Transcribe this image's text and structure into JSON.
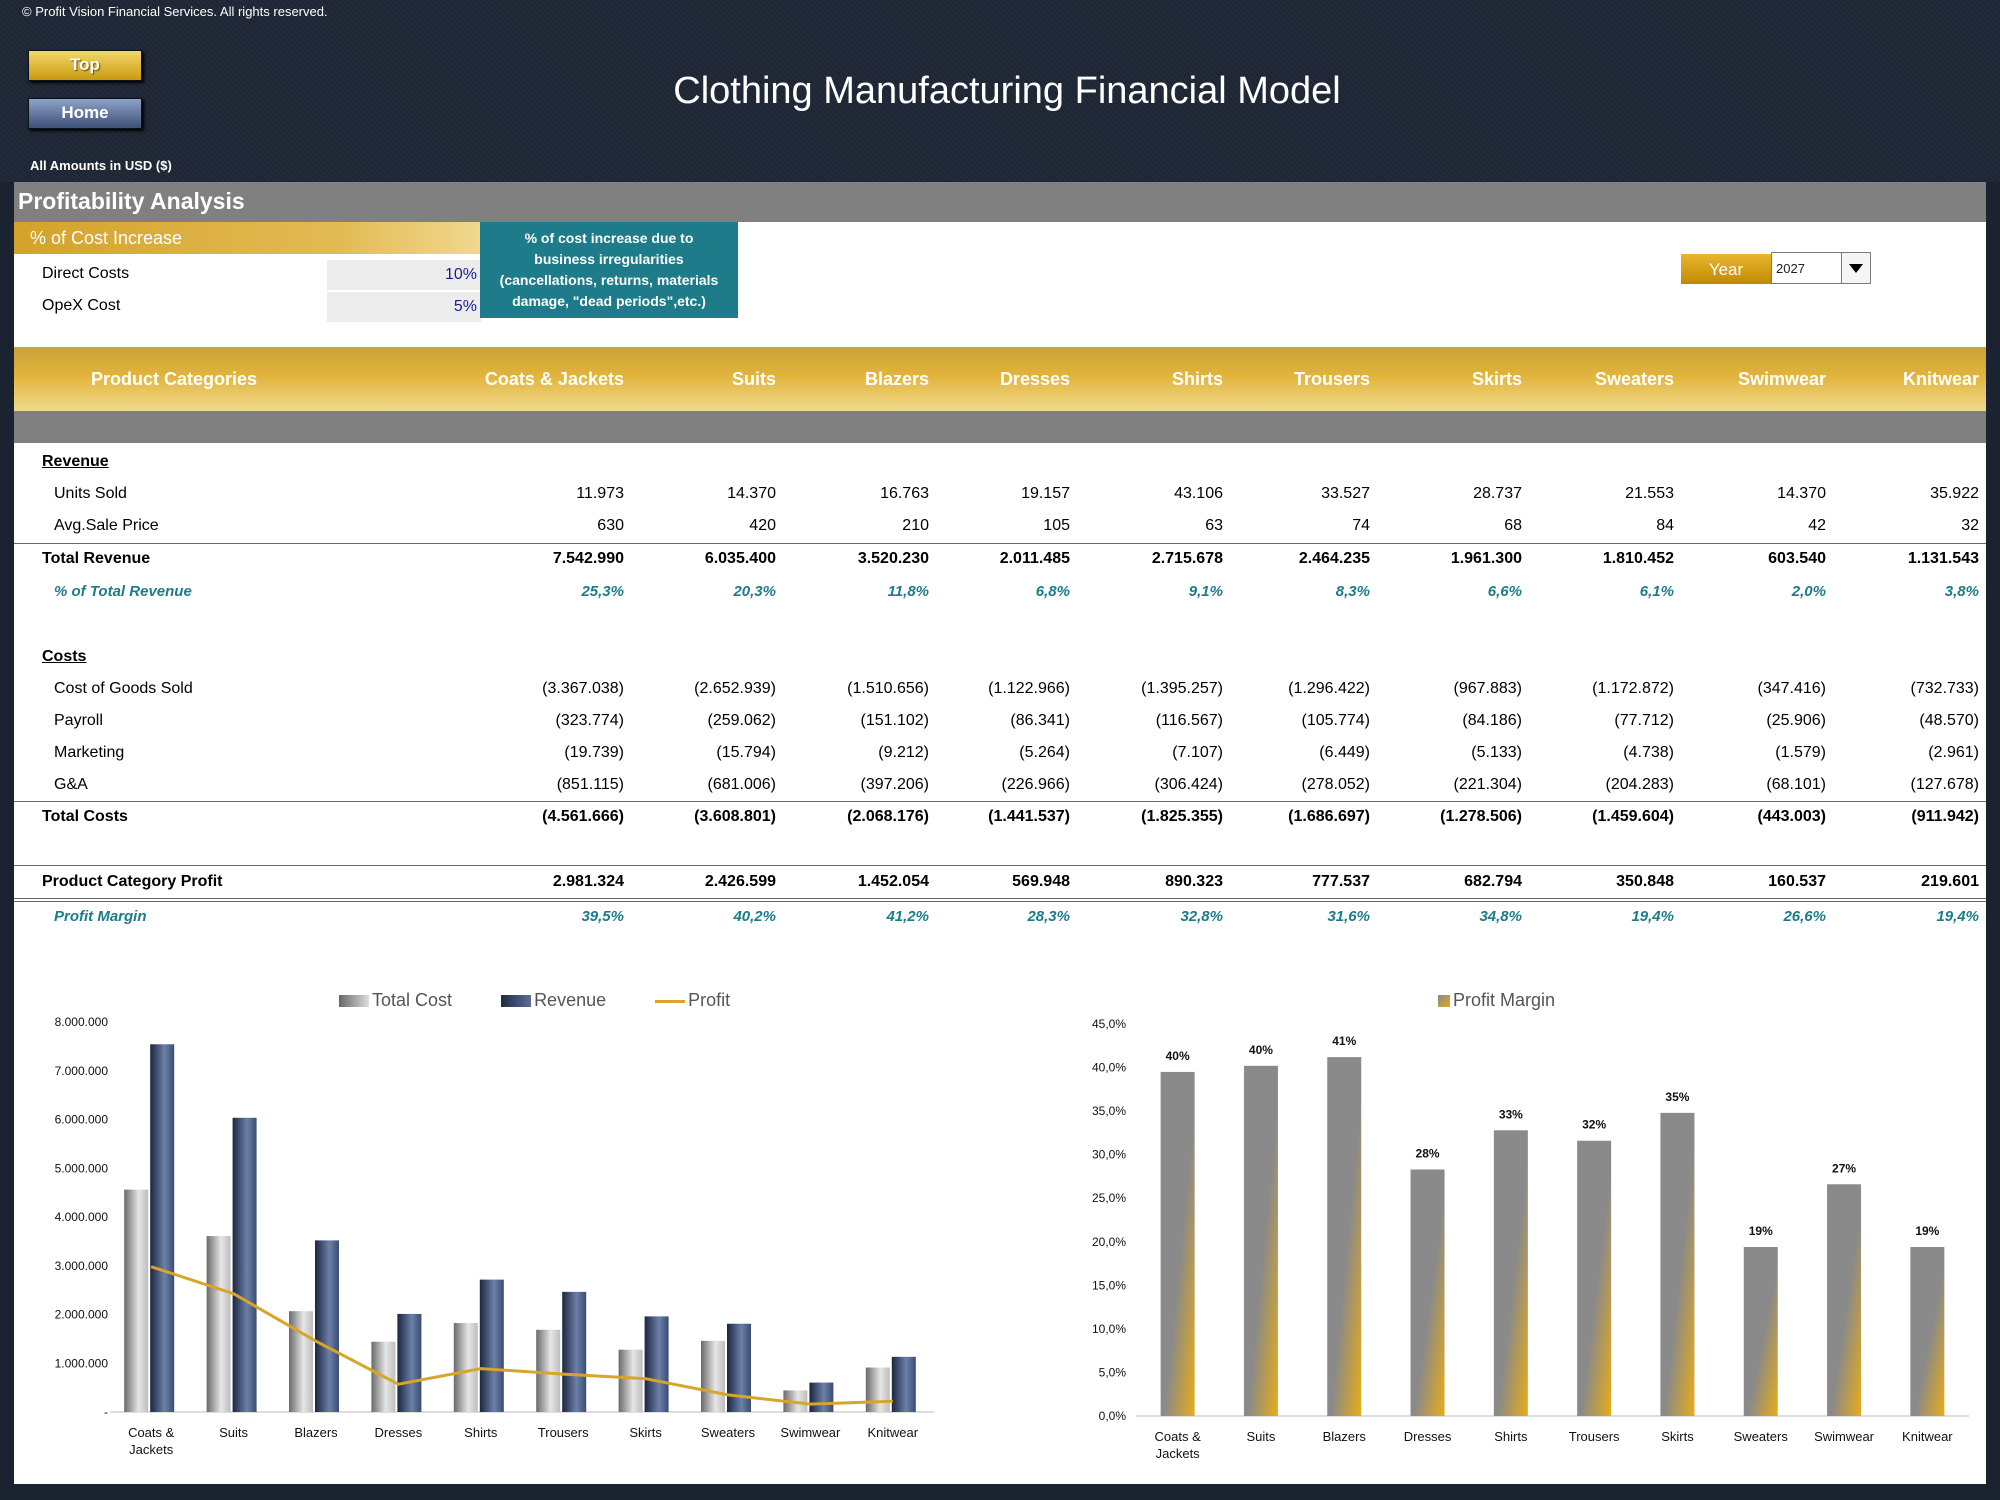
{
  "header": {
    "copyright": "© Profit Vision Financial Services. All rights reserved.",
    "top_button": "Top",
    "home_button": "Home",
    "title": "Clothing Manufacturing Financial Model",
    "amounts_note": "All Amounts in  USD ($)"
  },
  "section": {
    "title": "Profitability Analysis"
  },
  "cost_increase": {
    "header": "% of Cost Increase",
    "rows": [
      {
        "label": "Direct Costs",
        "value": "10%"
      },
      {
        "label": "OpeX Cost",
        "value": "5%"
      }
    ],
    "note_lines": [
      "% of cost increase due to",
      "business irregularities",
      "(cancellations, returns, materials",
      "damage, \"dead periods\",etc.)"
    ]
  },
  "year": {
    "label": "Year",
    "value": "2027"
  },
  "table": {
    "header_label": "Product Categories",
    "categories": [
      "Coats & Jackets",
      "Suits",
      "Blazers",
      "Dresses",
      "Shirts",
      "Trousers",
      "Skirts",
      "Sweaters",
      "Swimwear",
      "Knitwear"
    ],
    "revenue_title": "Revenue",
    "units_sold": {
      "label": "Units Sold",
      "values": [
        "11.973",
        "14.370",
        "16.763",
        "19.157",
        "43.106",
        "33.527",
        "28.737",
        "21.553",
        "14.370",
        "35.922"
      ]
    },
    "avg_price": {
      "label": "Avg.Sale Price",
      "values": [
        "630",
        "420",
        "210",
        "105",
        "63",
        "74",
        "68",
        "84",
        "42",
        "32"
      ]
    },
    "total_revenue": {
      "label": "Total Revenue",
      "values": [
        "7.542.990",
        "6.035.400",
        "3.520.230",
        "2.011.485",
        "2.715.678",
        "2.464.235",
        "1.961.300",
        "1.810.452",
        "603.540",
        "1.131.543"
      ]
    },
    "pct_revenue": {
      "label": "% of Total Revenue",
      "values": [
        "25,3%",
        "20,3%",
        "11,8%",
        "6,8%",
        "9,1%",
        "8,3%",
        "6,6%",
        "6,1%",
        "2,0%",
        "3,8%"
      ]
    },
    "costs_title": "Costs",
    "cogs": {
      "label": "Cost of Goods Sold",
      "values": [
        "(3.367.038)",
        "(2.652.939)",
        "(1.510.656)",
        "(1.122.966)",
        "(1.395.257)",
        "(1.296.422)",
        "(967.883)",
        "(1.172.872)",
        "(347.416)",
        "(732.733)"
      ]
    },
    "payroll": {
      "label": "Payroll",
      "values": [
        "(323.774)",
        "(259.062)",
        "(151.102)",
        "(86.341)",
        "(116.567)",
        "(105.774)",
        "(84.186)",
        "(77.712)",
        "(25.906)",
        "(48.570)"
      ]
    },
    "marketing": {
      "label": "Marketing",
      "values": [
        "(19.739)",
        "(15.794)",
        "(9.212)",
        "(5.264)",
        "(7.107)",
        "(6.449)",
        "(5.133)",
        "(4.738)",
        "(1.579)",
        "(2.961)"
      ]
    },
    "ga": {
      "label": "G&A",
      "values": [
        "(851.115)",
        "(681.006)",
        "(397.206)",
        "(226.966)",
        "(306.424)",
        "(278.052)",
        "(221.304)",
        "(204.283)",
        "(68.101)",
        "(127.678)"
      ]
    },
    "total_costs": {
      "label": "Total Costs",
      "values": [
        "(4.561.666)",
        "(3.608.801)",
        "(2.068.176)",
        "(1.441.537)",
        "(1.825.355)",
        "(1.686.697)",
        "(1.278.506)",
        "(1.459.604)",
        "(443.003)",
        "(911.942)"
      ]
    },
    "profit": {
      "label": "Product Category Profit",
      "values": [
        "2.981.324",
        "2.426.599",
        "1.452.054",
        "569.948",
        "890.323",
        "777.537",
        "682.794",
        "350.848",
        "160.537",
        "219.601"
      ]
    },
    "margin": {
      "label": "Profit Margin",
      "values": [
        "39,5%",
        "40,2%",
        "41,2%",
        "28,3%",
        "32,8%",
        "31,6%",
        "34,8%",
        "19,4%",
        "26,6%",
        "19,4%"
      ]
    }
  },
  "chart_data": [
    {
      "type": "bar",
      "categories": [
        "Coats & Jackets",
        "Suits",
        "Blazers",
        "Dresses",
        "Shirts",
        "Trousers",
        "Skirts",
        "Sweaters",
        "Swimwear",
        "Knitwear"
      ],
      "series": [
        {
          "name": "Total Cost",
          "type": "bar",
          "values": [
            4561666,
            3608801,
            2068176,
            1441537,
            1825355,
            1686697,
            1278506,
            1459604,
            443003,
            911942
          ]
        },
        {
          "name": "Revenue",
          "type": "bar",
          "values": [
            7542990,
            6035400,
            3520230,
            2011485,
            2715678,
            2464235,
            1961300,
            1810452,
            603540,
            1131543
          ]
        },
        {
          "name": "Profit",
          "type": "line",
          "values": [
            2981324,
            2426599,
            1452054,
            569948,
            890323,
            777537,
            682794,
            350848,
            160537,
            219601
          ]
        }
      ],
      "yticks": [
        "-",
        "1.000.000",
        "2.000.000",
        "3.000.000",
        "4.000.000",
        "5.000.000",
        "6.000.000",
        "7.000.000",
        "8.000.000"
      ],
      "ylim": [
        0,
        8000000
      ],
      "legend": "top",
      "colors": {
        "Total Cost": "#9e9e9e",
        "Revenue": "#2d3d5c",
        "Profit": "#d8a52a"
      }
    },
    {
      "type": "bar",
      "categories": [
        "Coats & Jackets",
        "Suits",
        "Blazers",
        "Dresses",
        "Shirts",
        "Trousers",
        "Skirts",
        "Sweaters",
        "Swimwear",
        "Knitwear"
      ],
      "series": [
        {
          "name": "Profit Margin",
          "values": [
            39.5,
            40.2,
            41.2,
            28.3,
            32.8,
            31.6,
            34.8,
            19.4,
            26.6,
            19.4
          ]
        }
      ],
      "data_labels": [
        "40%",
        "40%",
        "41%",
        "28%",
        "33%",
        "32%",
        "35%",
        "19%",
        "27%",
        "19%"
      ],
      "yticks": [
        "0,0%",
        "5,0%",
        "10,0%",
        "15,0%",
        "20,0%",
        "25,0%",
        "30,0%",
        "35,0%",
        "40,0%",
        "45,0%"
      ],
      "ylim": [
        0,
        45
      ],
      "legend": "top",
      "colors": {
        "Profit Margin": "#8a8a8a",
        "accent": "#e0ab1f"
      }
    }
  ]
}
